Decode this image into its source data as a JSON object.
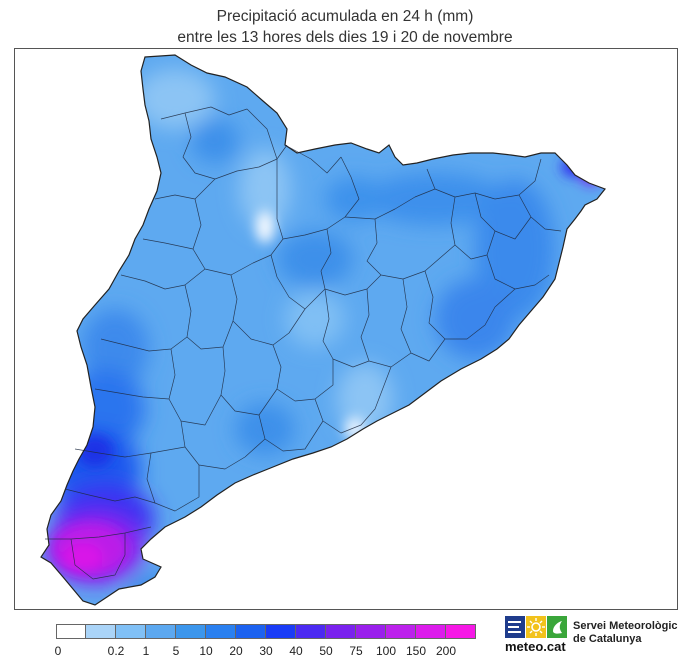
{
  "map": {
    "title_line1": "Precipitació acumulada en 24 h (mm)",
    "title_line2": "entre les 13 hores dels dies 19 i 20 de novembre",
    "region": "Catalunya"
  },
  "legend": {
    "bins": [
      {
        "color": "#ffffff"
      },
      {
        "color": "#aad4f8"
      },
      {
        "color": "#80c0f6"
      },
      {
        "color": "#5ca8f0"
      },
      {
        "color": "#3c96ec"
      },
      {
        "color": "#2a80f0"
      },
      {
        "color": "#1c62f0"
      },
      {
        "color": "#1a3cf6"
      },
      {
        "color": "#4c2af2"
      },
      {
        "color": "#7a22ee"
      },
      {
        "color": "#9a20ec"
      },
      {
        "color": "#bc22ec"
      },
      {
        "color": "#dc1cec"
      },
      {
        "color": "#f618e6"
      }
    ],
    "labels": [
      "0",
      "0.2",
      "1",
      "5",
      "10",
      "20",
      "30",
      "40",
      "50",
      "75",
      "100",
      "150",
      "200"
    ]
  },
  "logo": {
    "domain": "meteo.cat",
    "name_line1": "Servei Meteorològic",
    "name_line2": "de Catalunya",
    "colors": {
      "blue": "#1f3c8c",
      "yellow": "#f2c21b",
      "green": "#3aa63a"
    }
  }
}
